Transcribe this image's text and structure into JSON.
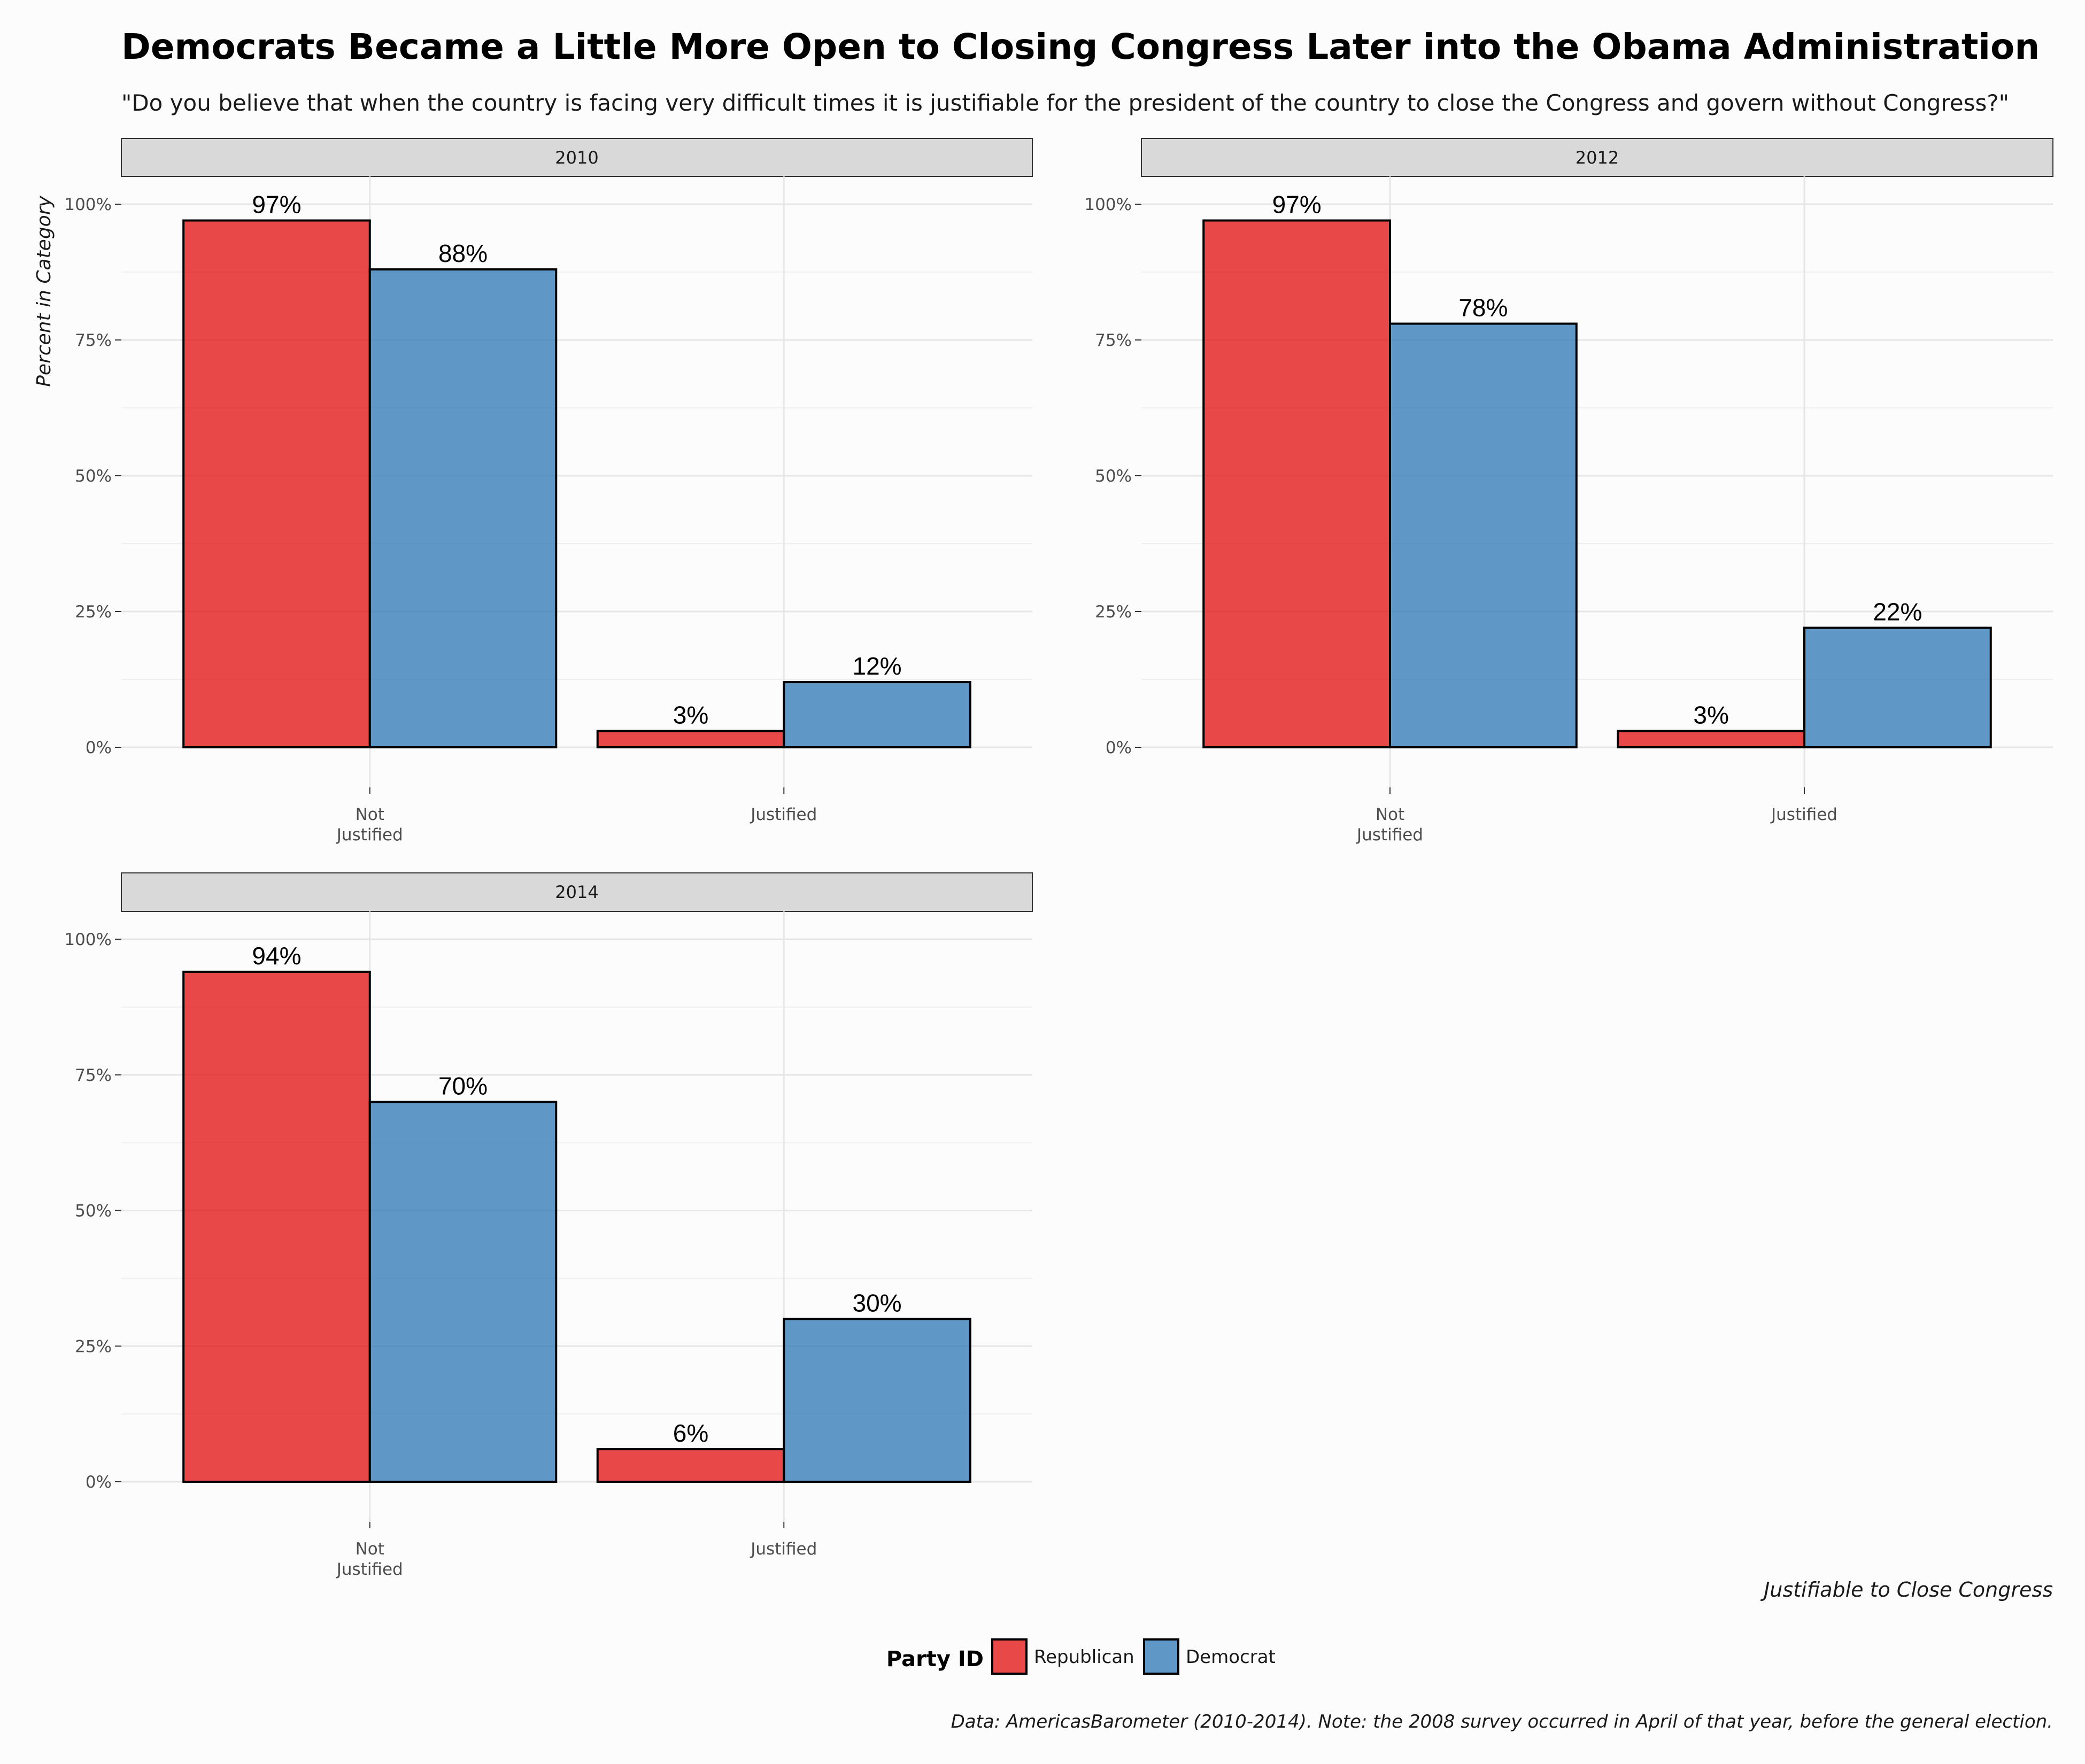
{
  "title": "Democrats Became a Little More Open to Closing Congress Later into the Obama Administration",
  "subtitle": "\"Do you believe that when the country is facing very difficult times it is justifiable for the president of the country to close the Congress and govern without Congress?\"",
  "caption": "Data: AmericasBarometer (2010-2014). Note: the 2008 survey occurred in April of that year, before the general election.",
  "legend": {
    "title": "Party ID",
    "items": [
      {
        "label": "Republican",
        "color": "#e41a1c"
      },
      {
        "label": "Democrat",
        "color": "#377eb8"
      }
    ]
  },
  "chart_data": {
    "type": "bar",
    "facet_by": "year",
    "xlabel": "Justifiable to Close Congress",
    "ylabel": "Percent in Category",
    "ylim": [
      0,
      1
    ],
    "y_ticks": [
      "0%",
      "25%",
      "50%",
      "75%",
      "100%"
    ],
    "y_tick_values": [
      0,
      0.25,
      0.5,
      0.75,
      1
    ],
    "categories": [
      [
        "Not",
        "Justified"
      ],
      [
        "Justified"
      ]
    ],
    "legend_position": "bottom",
    "grid": true,
    "panels": [
      {
        "label": "2010",
        "series": [
          {
            "name": "Republican",
            "values": [
              0.97,
              0.03
            ],
            "labels": [
              "97%",
              "3%"
            ]
          },
          {
            "name": "Democrat",
            "values": [
              0.88,
              0.12
            ],
            "labels": [
              "88%",
              "12%"
            ]
          }
        ]
      },
      {
        "label": "2012",
        "series": [
          {
            "name": "Republican",
            "values": [
              0.97,
              0.03
            ],
            "labels": [
              "97%",
              "3%"
            ]
          },
          {
            "name": "Democrat",
            "values": [
              0.78,
              0.22
            ],
            "labels": [
              "78%",
              "22%"
            ]
          }
        ]
      },
      {
        "label": "2014",
        "series": [
          {
            "name": "Republican",
            "values": [
              0.94,
              0.06
            ],
            "labels": [
              "94%",
              "6%"
            ]
          },
          {
            "name": "Democrat",
            "values": [
              0.7,
              0.3
            ],
            "labels": [
              "70%",
              "30%"
            ]
          }
        ]
      }
    ]
  }
}
